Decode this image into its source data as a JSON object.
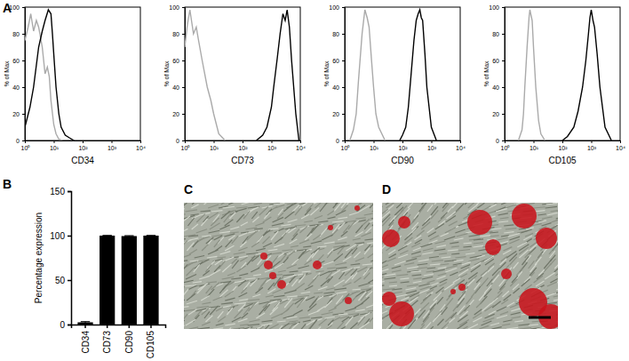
{
  "panel_labels": [
    "A",
    "B",
    "C",
    "D"
  ],
  "chart_data": [
    {
      "type": "line",
      "log": "x",
      "x_label": "CD34",
      "y_label": "% of Max",
      "xlim": [
        1,
        10000
      ],
      "xticks": [
        {
          "value": 1,
          "label": "10⁰"
        },
        {
          "value": 10,
          "label": "10¹"
        },
        {
          "value": 100,
          "label": "10²"
        },
        {
          "value": 1000,
          "label": "10³"
        },
        {
          "value": 10000,
          "label": "10⁴"
        }
      ],
      "ylim": [
        0,
        100
      ],
      "yticks": [
        0,
        20,
        40,
        60,
        80,
        100
      ],
      "series": [
        {
          "color": "#aaaaaa",
          "x": [
            1,
            1.3,
            1.6,
            2,
            2.5,
            3,
            4,
            5,
            6,
            7,
            8,
            10,
            12,
            15,
            20
          ],
          "values": [
            75,
            85,
            95,
            82,
            90,
            85,
            70,
            50,
            55,
            48,
            30,
            12,
            5,
            1,
            0
          ]
        },
        {
          "color": "#000000",
          "x": [
            1,
            1.5,
            2,
            3,
            4,
            5,
            6.5,
            8,
            9,
            10,
            12,
            15,
            18,
            25,
            35,
            50
          ],
          "values": [
            10,
            25,
            40,
            70,
            82,
            90,
            98,
            95,
            80,
            65,
            40,
            20,
            10,
            4,
            2,
            0
          ]
        }
      ]
    },
    {
      "type": "line",
      "log": "x",
      "x_label": "CD73",
      "y_label": "% of Max",
      "xlim": [
        1,
        10000
      ],
      "xticks": [
        {
          "value": 1,
          "label": "10⁰"
        },
        {
          "value": 10,
          "label": "10¹"
        },
        {
          "value": 100,
          "label": "10²"
        },
        {
          "value": 1000,
          "label": "10³"
        },
        {
          "value": 10000,
          "label": "10⁴"
        }
      ],
      "ylim": [
        0,
        100
      ],
      "yticks": [
        0,
        20,
        40,
        60,
        80,
        100
      ],
      "series": [
        {
          "color": "#aaaaaa",
          "x": [
            1,
            1.2,
            1.5,
            2,
            2.5,
            3,
            4,
            6,
            8,
            10,
            15,
            25
          ],
          "values": [
            70,
            85,
            98,
            80,
            85,
            75,
            60,
            40,
            30,
            20,
            5,
            0
          ]
        },
        {
          "color": "#000000",
          "x": [
            300,
            500,
            700,
            1000,
            1200,
            1600,
            2000,
            2500,
            3000,
            3500,
            4200,
            5000,
            7000,
            9000
          ],
          "values": [
            0,
            4,
            10,
            25,
            40,
            62,
            80,
            95,
            90,
            98,
            85,
            60,
            20,
            0
          ]
        }
      ]
    },
    {
      "type": "line",
      "log": "x",
      "x_label": "CD90",
      "y_label": "% of Max",
      "xlim": [
        1,
        10000
      ],
      "xticks": [
        {
          "value": 1,
          "label": "10⁰"
        },
        {
          "value": 10,
          "label": "10¹"
        },
        {
          "value": 100,
          "label": "10²"
        },
        {
          "value": 1000,
          "label": "10³"
        },
        {
          "value": 10000,
          "label": "10⁴"
        }
      ],
      "ylim": [
        0,
        100
      ],
      "yticks": [
        0,
        20,
        40,
        60,
        80,
        100
      ],
      "series": [
        {
          "color": "#aaaaaa",
          "x": [
            1.5,
            2,
            2.5,
            3,
            4,
            5,
            6,
            7,
            8.5,
            10,
            12,
            15,
            25
          ],
          "values": [
            0,
            8,
            20,
            45,
            80,
            98,
            92,
            85,
            60,
            40,
            20,
            10,
            0
          ]
        },
        {
          "color": "#000000",
          "x": [
            80,
            100,
            130,
            160,
            200,
            250,
            300,
            350,
            400,
            450,
            500,
            600,
            700,
            1000,
            1500
          ],
          "values": [
            0,
            4,
            10,
            25,
            50,
            75,
            90,
            95,
            98,
            92,
            90,
            65,
            40,
            10,
            0
          ]
        }
      ]
    },
    {
      "type": "line",
      "log": "x",
      "x_label": "CD105",
      "y_label": "% of Max",
      "xlim": [
        1,
        10000
      ],
      "xticks": [
        {
          "value": 1,
          "label": "10⁰"
        },
        {
          "value": 10,
          "label": "10¹"
        },
        {
          "value": 100,
          "label": "10²"
        },
        {
          "value": 1000,
          "label": "10³"
        },
        {
          "value": 10000,
          "label": "10⁴"
        }
      ],
      "ylim": [
        0,
        100
      ],
      "yticks": [
        0,
        20,
        40,
        60,
        80,
        100
      ],
      "series": [
        {
          "color": "#aaaaaa",
          "x": [
            3,
            4,
            4.5,
            5,
            6,
            7,
            7.5,
            8,
            9,
            10,
            12,
            15,
            18,
            25
          ],
          "values": [
            0,
            8,
            20,
            40,
            70,
            92,
            98,
            95,
            90,
            70,
            40,
            15,
            5,
            0
          ]
        },
        {
          "color": "#000000",
          "x": [
            100,
            150,
            250,
            350,
            500,
            650,
            800,
            900,
            1000,
            1150,
            1300,
            1600,
            2000,
            3000,
            5000
          ],
          "values": [
            0,
            3,
            10,
            22,
            40,
            60,
            80,
            92,
            98,
            90,
            85,
            65,
            40,
            10,
            0
          ]
        }
      ]
    },
    {
      "type": "bar",
      "categories": [
        "CD34",
        "CD73",
        "CD90",
        "CD105"
      ],
      "values": [
        2.5,
        100,
        99.5,
        100
      ],
      "errors": [
        0.8,
        0.2,
        0.5,
        0.2
      ],
      "color": "#000000",
      "y_label": "Percentage expression",
      "ylim": [
        0,
        150
      ],
      "yticks": [
        0,
        50,
        100,
        150
      ]
    }
  ]
}
